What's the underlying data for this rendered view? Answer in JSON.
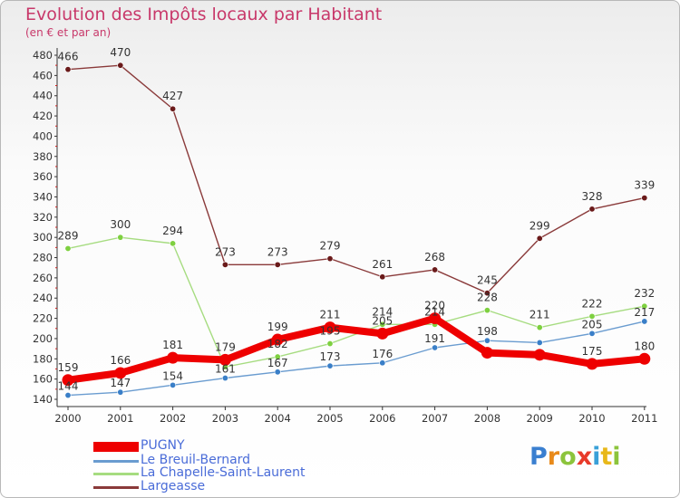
{
  "header": {
    "title": "Evolution des Impôts locaux par Habitant",
    "subtitle": "(en € et par an)"
  },
  "logo": {
    "text": "Proxiti",
    "letters": [
      {
        "ch": "P",
        "color": "#3a7fd0"
      },
      {
        "ch": "r",
        "color": "#e88a1a"
      },
      {
        "ch": "o",
        "color": "#8cc43c"
      },
      {
        "ch": "x",
        "color": "#e83a2a"
      },
      {
        "ch": "i",
        "color": "#3aa0d8"
      },
      {
        "ch": "t",
        "color": "#e8b81a"
      },
      {
        "ch": "i",
        "color": "#8cc43c"
      }
    ]
  },
  "chart_data": {
    "type": "line",
    "title": "Evolution des Impôts locaux par Habitant",
    "subtitle": "(en € et par an)",
    "xlabel": "",
    "ylabel": "",
    "categories": [
      "2000",
      "2001",
      "2002",
      "2003",
      "2004",
      "2005",
      "2006",
      "2007",
      "2008",
      "2009",
      "2010",
      "2011"
    ],
    "ylim": [
      140,
      480
    ],
    "yticks": [
      140,
      160,
      180,
      200,
      220,
      240,
      260,
      280,
      300,
      320,
      340,
      360,
      380,
      400,
      420,
      440,
      460,
      480
    ],
    "grid": false,
    "legend_position": "bottom-left",
    "series": [
      {
        "name": "PUGNY",
        "color": "#ee0000",
        "width": "thick",
        "values": [
          159,
          166,
          181,
          179,
          199,
          211,
          205,
          220,
          186,
          184,
          175,
          180
        ],
        "labels": [
          "159",
          "166",
          "181",
          "179",
          "199",
          "211",
          "205",
          "220",
          "",
          "",
          "175",
          "180"
        ]
      },
      {
        "name": "Le Breuil-Bernard",
        "color": "#6a9cd0",
        "marker": "#3a7fc8",
        "width": "thin",
        "values": [
          144,
          147,
          154,
          161,
          167,
          173,
          176,
          191,
          198,
          196,
          205,
          217
        ],
        "labels": [
          "144",
          "147",
          "154",
          "161",
          "167",
          "173",
          "176",
          "191",
          "198",
          "",
          "205",
          "217"
        ]
      },
      {
        "name": "La Chapelle-Saint-Laurent",
        "color": "#a6dc80",
        "marker": "#7ed040",
        "width": "thin",
        "values": [
          289,
          300,
          294,
          172,
          182,
          195,
          214,
          214,
          228,
          211,
          222,
          232
        ],
        "labels": [
          "289",
          "300",
          "294",
          "",
          "182",
          "195",
          "214",
          "214",
          "228",
          "211",
          "222",
          "232"
        ]
      },
      {
        "name": "Largeasse",
        "color": "#8a3a3a",
        "marker": "#6a1a1a",
        "width": "thin",
        "values": [
          466,
          470,
          427,
          273,
          273,
          279,
          261,
          268,
          245,
          299,
          328,
          339
        ],
        "labels": [
          "466",
          "470",
          "427",
          "273",
          "273",
          "279",
          "261",
          "268",
          "245",
          "299",
          "328",
          "339"
        ]
      }
    ],
    "extra_labels": [
      "179",
      "172",
      "194",
      "187",
      "205",
      "204",
      "220",
      "195",
      "196",
      "181",
      "214",
      "194",
      "186"
    ]
  },
  "legend": {
    "items": [
      {
        "label": "PUGNY",
        "color": "#ee0000",
        "thick": true
      },
      {
        "label": "Le Breuil-Bernard",
        "color": "#6a9cd0",
        "thick": false
      },
      {
        "label": "La Chapelle-Saint-Laurent",
        "color": "#a6dc80",
        "thick": false
      },
      {
        "label": "Largeasse",
        "color": "#8a3a3a",
        "thick": false
      }
    ]
  }
}
